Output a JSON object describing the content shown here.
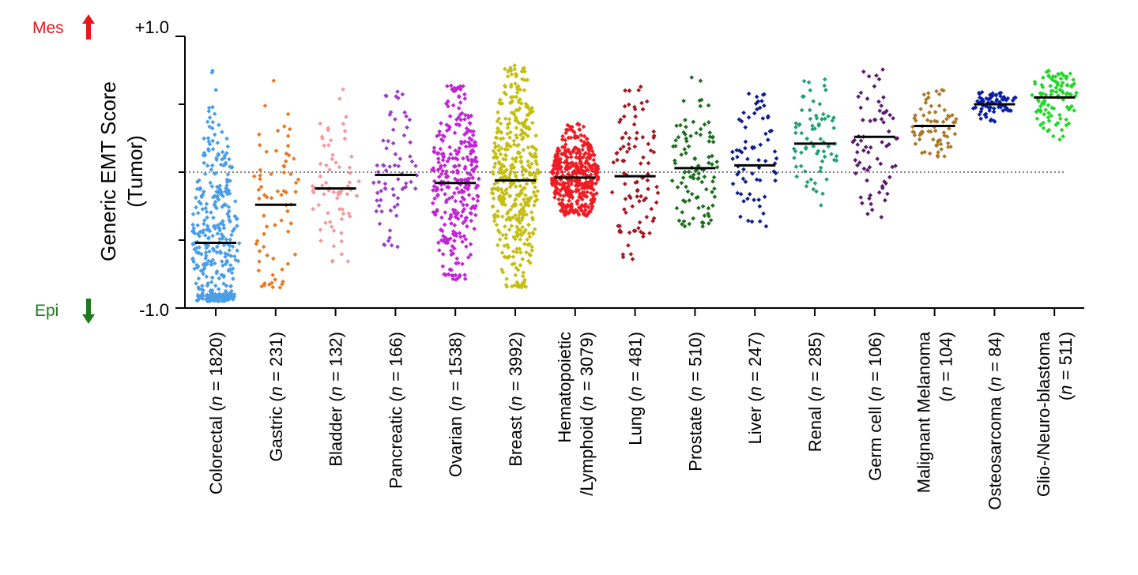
{
  "chart_data": {
    "type": "scatter",
    "subtype": "dot-strip-plot",
    "ylabel_line1": "Generic EMT Score",
    "ylabel_line2": "(Tumor)",
    "ylim": [
      -1.0,
      1.0
    ],
    "ytick_top": "+1.0",
    "ytick_bottom": "-1.0",
    "reference_line": 0,
    "annotation_top": {
      "text": "Mes",
      "arrow": "up",
      "color": "#e8161b"
    },
    "annotation_bottom": {
      "text": "Epi",
      "arrow": "down",
      "color": "#1e7a1e"
    },
    "categories": [
      {
        "name": "Colorectal",
        "n": "1820",
        "color": "#4a9ee6",
        "median": -0.52,
        "min": -0.95,
        "max": 0.75
      },
      {
        "name": "Gastric",
        "n": "231",
        "color": "#e67a22",
        "median": -0.24,
        "min": -0.85,
        "max": 0.74
      },
      {
        "name": "Bladder",
        "n": "132",
        "color": "#f29aa0",
        "median": -0.12,
        "min": -0.7,
        "max": 0.63
      },
      {
        "name": "Pancreatic",
        "n": "166",
        "color": "#9b3fc6",
        "median": -0.02,
        "min": -0.55,
        "max": 0.6
      },
      {
        "name": "Ovarian",
        "n": "1538",
        "color": "#c026d3",
        "median": -0.08,
        "min": -0.8,
        "max": 0.64
      },
      {
        "name": "Breast",
        "n": "3992",
        "color": "#c4be12",
        "median": -0.06,
        "min": -0.85,
        "max": 0.79
      },
      {
        "name": "Hematopoietic",
        "name_line2": "/Lymphoid",
        "n": "3079",
        "color": "#ee1c24",
        "median": -0.04,
        "min": -0.32,
        "max": 0.36
      },
      {
        "name": "Lung",
        "n": "481",
        "color": "#a11a22",
        "median": -0.03,
        "min": -0.65,
        "max": 0.65
      },
      {
        "name": "Prostate",
        "n": "510",
        "color": "#1e6e1e",
        "median": 0.03,
        "min": -0.4,
        "max": 0.74
      },
      {
        "name": "Liver",
        "n": "247",
        "color": "#0e1e8a",
        "median": 0.05,
        "min": -0.4,
        "max": 0.58
      },
      {
        "name": "Renal",
        "n": "285",
        "color": "#22a072",
        "median": 0.21,
        "min": -0.25,
        "max": 0.69
      },
      {
        "name": "Germ cell",
        "n": "106",
        "color": "#5a1a6e",
        "median": 0.26,
        "min": -0.4,
        "max": 0.76
      },
      {
        "name": "Malignant Melanoma",
        "n": "104",
        "color": "#a87a2a",
        "median": 0.34,
        "min": 0.1,
        "max": 0.61,
        "two_line": true
      },
      {
        "name": "Osteosarcoma",
        "n": "84",
        "color": "#0a1ea8",
        "median": 0.5,
        "min": 0.37,
        "max": 0.62
      },
      {
        "name": "Glio-/Neuro-blastoma",
        "n": "511",
        "color": "#22d62a",
        "median": 0.55,
        "min": 0.24,
        "max": 0.75,
        "two_line": true
      }
    ]
  }
}
